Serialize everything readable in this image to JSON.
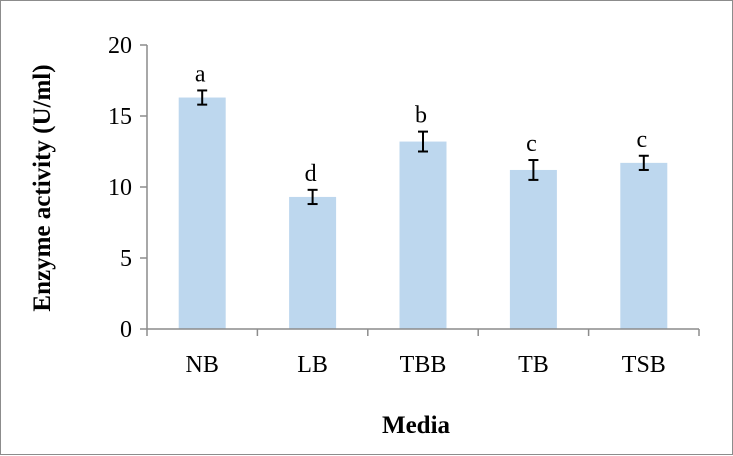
{
  "chart_data": {
    "type": "bar",
    "categories": [
      "NB",
      "LB",
      "TBB",
      "TB",
      "TSB"
    ],
    "values": [
      16.3,
      9.3,
      13.2,
      11.2,
      11.7
    ],
    "errors": [
      0.5,
      0.5,
      0.7,
      0.7,
      0.5
    ],
    "significance_labels": [
      "a",
      "d",
      "b",
      "c",
      "c"
    ],
    "title": "",
    "xlabel": "Media",
    "ylabel": "Enzyme activity (U/ml)",
    "ylim": [
      0,
      20
    ],
    "yticks": [
      0,
      5,
      10,
      15,
      20
    ],
    "grid": false,
    "legend": "none",
    "bar_color": "#bdd7ee",
    "error_bar_color": "#000000"
  }
}
